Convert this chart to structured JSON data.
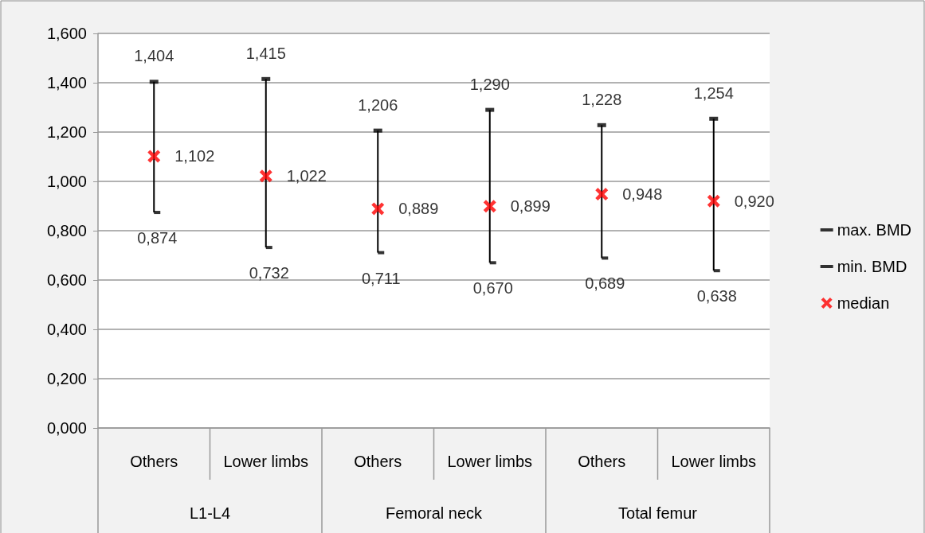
{
  "chart_data": {
    "type": "scatter",
    "categories": [
      "Others",
      "Lower limbs",
      "Others",
      "Lower limbs",
      "Others",
      "Lower limbs"
    ],
    "annotations": [
      "L1-L4",
      "Femoral neck",
      "Total femur"
    ],
    "series": [
      {
        "name": "max. BMD",
        "color": "#000000",
        "values": [
          1.404,
          1.415,
          1.206,
          1.29,
          1.228,
          1.254
        ],
        "value_labels": [
          "1,404",
          "1,415",
          "1,206",
          "1,290",
          "1,228",
          "1,254"
        ]
      },
      {
        "name": "min. BMD",
        "color": "#000000",
        "values": [
          0.874,
          0.732,
          0.711,
          0.67,
          0.689,
          0.638
        ],
        "value_labels": [
          "0,874",
          "0,732",
          "0,711",
          "0,670",
          "0,689",
          "0,638"
        ]
      },
      {
        "name": "median",
        "color": "#ff0000",
        "marker": "cross",
        "values": [
          1.102,
          1.022,
          0.889,
          0.899,
          0.948,
          0.92
        ],
        "value_labels": [
          "1,102",
          "1,022",
          "0,889",
          "0,899",
          "0,948",
          "0,920"
        ]
      },
      {
        "type": "bar",
        "color": "#000000",
        "base": [
          0.874,
          0.732,
          0.711,
          0.67,
          0.689,
          0.638
        ],
        "values": [
          0.53,
          0.683,
          0.495,
          0.62,
          0.539,
          0.616
        ]
      }
    ],
    "ylim": [
      0,
      1.6
    ],
    "yticks": [
      {
        "value": 0,
        "label": "0,000"
      },
      {
        "value": 0.2,
        "label": "0,200"
      },
      {
        "value": 0.4,
        "label": "0,400"
      },
      {
        "value": 0.6,
        "label": "0,600"
      },
      {
        "value": 0.8,
        "label": "0,800"
      },
      {
        "value": 1.0,
        "label": "1,000"
      },
      {
        "value": 1.2,
        "label": "1,200"
      },
      {
        "value": 1.4,
        "label": "1,400"
      },
      {
        "value": 1.6,
        "label": "1,600"
      }
    ],
    "grid": "y",
    "legend": "right"
  }
}
